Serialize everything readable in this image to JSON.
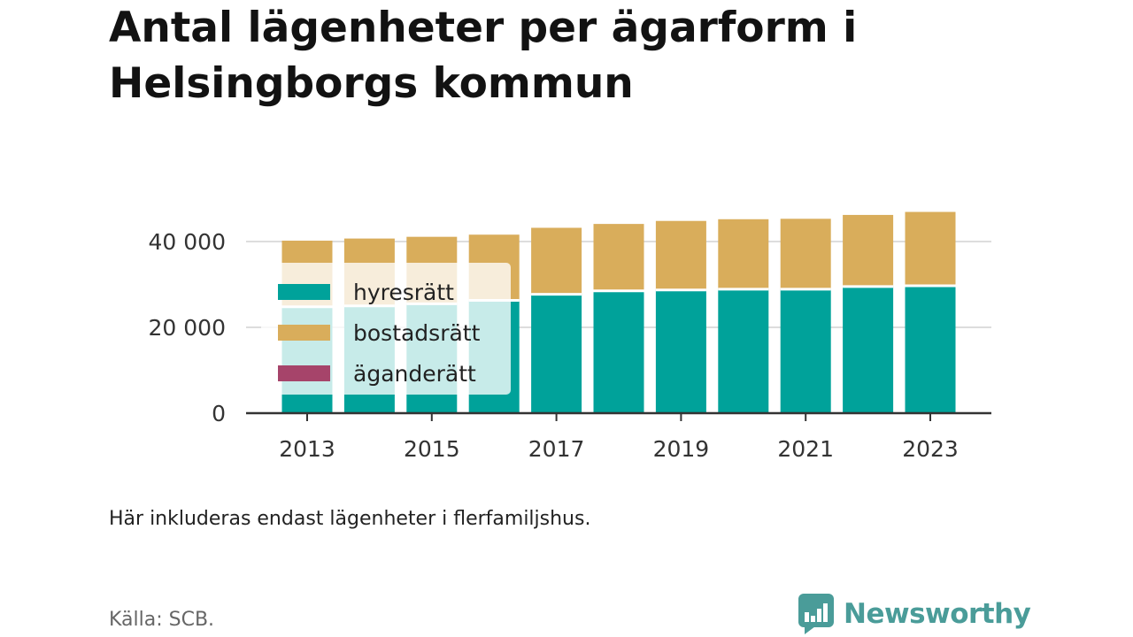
{
  "title": "Antal lägenheter per ägarform i Helsingborgs kommun",
  "note": "Här inkluderas endast lägenheter i flerfamiljshus.",
  "source": "Källa: SCB.",
  "brand": {
    "name": "Newsworthy",
    "icon": "chat-bar-chart-icon",
    "color": "#4a9c99"
  },
  "colors": {
    "hyresratt": "#00a29a",
    "bostadsratt": "#d9ad5b",
    "aganderatt": "#a6446a",
    "grid": "#dddddd",
    "axis": "#333333"
  },
  "chart_data": {
    "type": "bar",
    "stacked": true,
    "title": "Antal lägenheter per ägarform i Helsingborgs kommun",
    "xlabel": "",
    "ylabel": "",
    "categories": [
      "2013",
      "2014",
      "2015",
      "2016",
      "2017",
      "2018",
      "2019",
      "2020",
      "2021",
      "2022",
      "2023"
    ],
    "x_tick_labels": [
      "2013",
      "2015",
      "2017",
      "2019",
      "2021",
      "2023"
    ],
    "y_ticks": [
      0,
      20000,
      40000
    ],
    "y_tick_labels": [
      "0",
      "20 000",
      "40 000"
    ],
    "ylim": [
      0,
      48000
    ],
    "grid": true,
    "legend": "top-left",
    "series": [
      {
        "name": "hyresrätt",
        "color": "#00a29a",
        "values": [
          24800,
          25000,
          25500,
          26300,
          27700,
          28500,
          28700,
          28900,
          28900,
          29500,
          29700
        ]
      },
      {
        "name": "bostadsrätt",
        "color": "#d9ad5b",
        "values": [
          15400,
          15700,
          15600,
          15300,
          15500,
          15600,
          16100,
          16300,
          16400,
          16700,
          17200
        ]
      },
      {
        "name": "äganderätt",
        "color": "#a6446a",
        "values": [
          0,
          0,
          0,
          0,
          0,
          0,
          0,
          0,
          0,
          0,
          0
        ]
      }
    ]
  }
}
